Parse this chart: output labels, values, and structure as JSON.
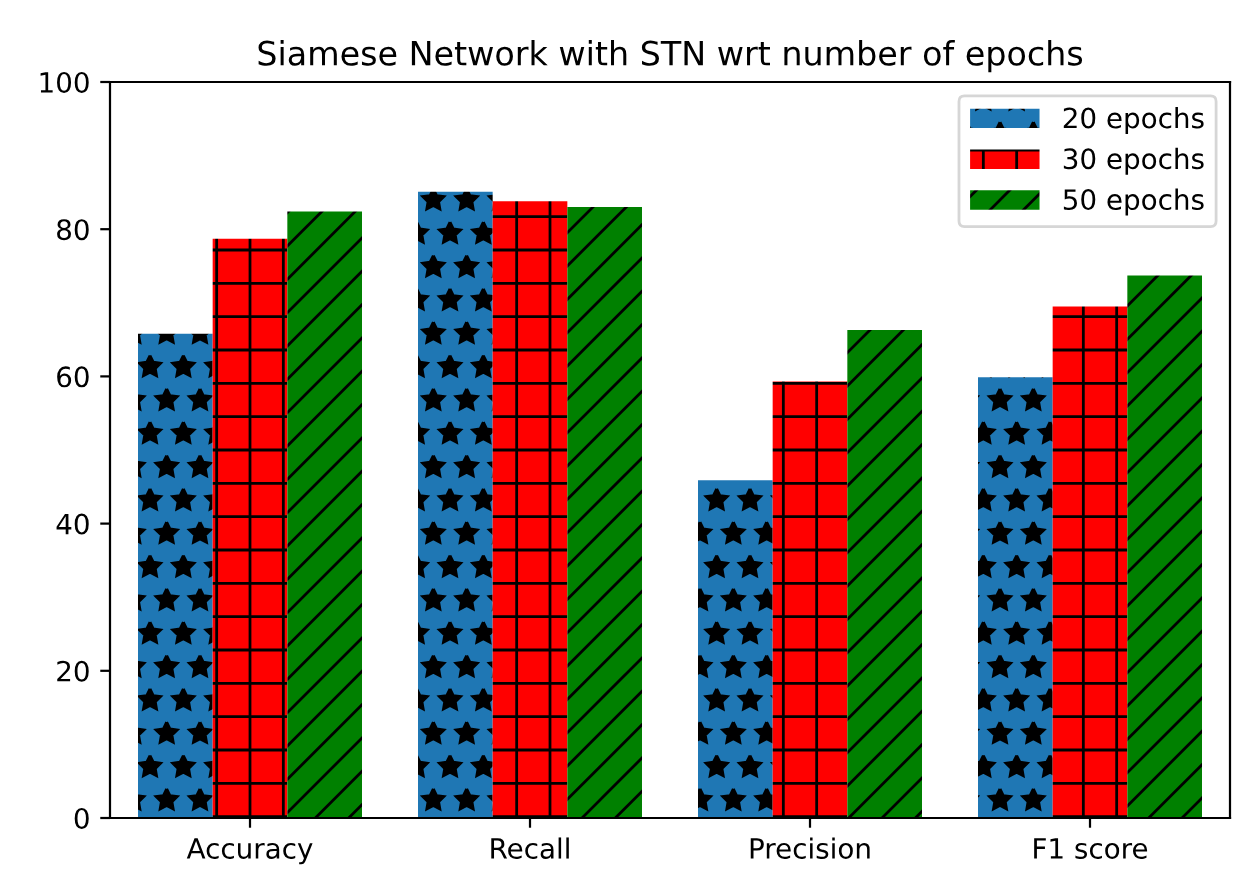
{
  "chart_data": {
    "type": "bar",
    "title": "Siamese Network with STN wrt number of epochs",
    "categories": [
      "Accuracy",
      "Recall",
      "Precision",
      "F1 score"
    ],
    "series": [
      {
        "name": "20 epochs",
        "color": "#1f77b4",
        "values": [
          65.8,
          85.1,
          45.9,
          59.9
        ]
      },
      {
        "name": "30 epochs",
        "color": "#ff0000",
        "values": [
          78.7,
          83.8,
          59.3,
          69.5
        ]
      },
      {
        "name": "50 epochs",
        "color": "#008000",
        "values": [
          82.4,
          83.0,
          66.3,
          73.7
        ]
      }
    ],
    "ylim": [
      0,
      100
    ],
    "yticks": [
      0,
      20,
      40,
      60,
      80,
      100
    ],
    "grid": false,
    "legend": "top right"
  }
}
